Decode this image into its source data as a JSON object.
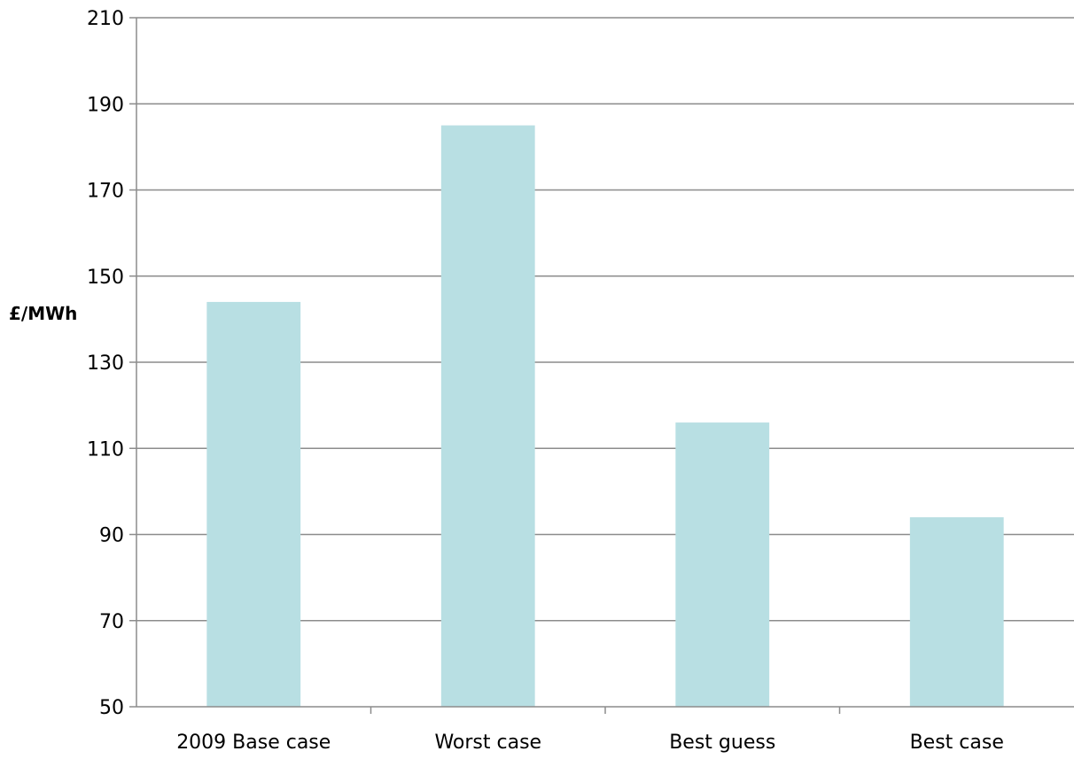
{
  "chart_data": {
    "type": "bar",
    "title": "",
    "xlabel": "",
    "ylabel": "£/MWh",
    "categories": [
      "2009 Base case",
      "Worst case",
      "Best guess",
      "Best case"
    ],
    "values": [
      144,
      185,
      116,
      94
    ],
    "ylim": [
      50,
      210
    ],
    "yticks": [
      50,
      70,
      90,
      110,
      130,
      150,
      170,
      190,
      210
    ],
    "grid": true,
    "legend": "none",
    "colors": {
      "bar": "#b8dfe3",
      "grid": "#8c8c8c",
      "axis": "#8c8c8c"
    }
  }
}
